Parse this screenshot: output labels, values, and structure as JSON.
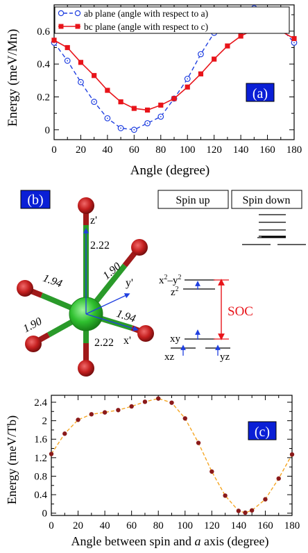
{
  "chart_data": [
    {
      "type": "line",
      "panel_label": "(a)",
      "xlabel": "Angle (degree)",
      "ylabel": "Energy (meV/Mn)",
      "xlim": [
        0,
        180
      ],
      "ylim": [
        -0.06,
        0.76
      ],
      "xticks": [
        0,
        10,
        20,
        30,
        40,
        50,
        60,
        70,
        80,
        90,
        100,
        110,
        120,
        130,
        140,
        150,
        160,
        170,
        180
      ],
      "xtick_labels": [
        "0",
        "20",
        "40",
        "60",
        "80",
        "100",
        "120",
        "140",
        "160",
        "180"
      ],
      "yticks": [
        0,
        0.2,
        0.4,
        0.6
      ],
      "ytick_labels": [
        "0",
        "0.2",
        "0.4",
        "0.6"
      ],
      "legend_position": "top-left",
      "series": [
        {
          "name": "ab plane (angle with respect to a)",
          "color": "#1f3fe0",
          "line": "dashed",
          "marker": "open-circle-dot",
          "x": [
            0,
            10,
            20,
            30,
            40,
            50,
            60,
            70,
            80,
            90,
            100,
            110,
            120,
            130,
            140,
            150,
            160,
            170,
            180
          ],
          "values": [
            0.53,
            0.42,
            0.29,
            0.17,
            0.07,
            0.01,
            0.0,
            0.04,
            0.08,
            0.19,
            0.31,
            0.46,
            0.59,
            0.66,
            0.71,
            0.74,
            0.71,
            0.62,
            0.53
          ]
        },
        {
          "name": "bc plane (angle with respect to c)",
          "color": "#e8141a",
          "line": "solid",
          "marker": "filled-square",
          "x": [
            0,
            10,
            20,
            30,
            40,
            50,
            60,
            70,
            80,
            90,
            100,
            110,
            120,
            130,
            140,
            150,
            160,
            170,
            180
          ],
          "values": [
            0.545,
            0.5,
            0.41,
            0.33,
            0.24,
            0.17,
            0.13,
            0.12,
            0.15,
            0.19,
            0.26,
            0.34,
            0.43,
            0.51,
            0.57,
            0.61,
            0.625,
            0.6,
            0.555
          ]
        }
      ]
    },
    {
      "type": "diagram",
      "panel_label": "(b)",
      "axis_labels": {
        "x": "x'",
        "y": "y'",
        "z": "z'"
      },
      "bond_lengths": {
        "top": "2.22",
        "bottom": "2.22",
        "upper_left": "1.94",
        "lower_right": "1.94",
        "upper_right": "1.90",
        "lower_left": "1.90"
      },
      "level_diagram": {
        "spin_up_label": "Spin up",
        "spin_down_label": "Spin down",
        "orbitals": {
          "x2y2_base": "x",
          "x2y2_mid": "–y",
          "sup2": "2",
          "z2_base": "z",
          "xy": "xy",
          "xz": "xz",
          "yz": "yz"
        },
        "soc_label": "SOC",
        "soc_color": "#e8141a",
        "arrow_color": "#1f3fe0"
      }
    },
    {
      "type": "line",
      "panel_label": "(c)",
      "xlabel_prefix": "Angle between spin and ",
      "xlabel_italic": "a",
      "xlabel_suffix": " axis (degree)",
      "ylabel": "Energy (meV/Tb)",
      "xlim": [
        0,
        180
      ],
      "ylim": [
        -0.05,
        2.55
      ],
      "xticks": [
        0,
        20,
        40,
        60,
        80,
        100,
        120,
        140,
        160,
        180
      ],
      "yticks": [
        0,
        0.4,
        0.8,
        1.2,
        1.6,
        2,
        2.4
      ],
      "ytick_labels": [
        "0",
        "0.4",
        "0.8",
        "1.2",
        "1.6",
        "2",
        "2.4"
      ],
      "series": [
        {
          "color": "#8b1a1a",
          "line_color": "#f5a623",
          "line": "dashed",
          "marker": "filled-circle",
          "x": [
            0,
            10,
            20,
            30,
            40,
            50,
            60,
            70,
            80,
            90,
            100,
            110,
            120,
            130,
            140,
            145,
            150,
            160,
            170,
            180
          ],
          "values": [
            1.28,
            1.72,
            2.02,
            2.14,
            2.18,
            2.23,
            2.31,
            2.41,
            2.48,
            2.39,
            2.05,
            1.52,
            0.9,
            0.38,
            0.05,
            0.01,
            0.06,
            0.3,
            0.75,
            1.27
          ]
        }
      ]
    }
  ]
}
